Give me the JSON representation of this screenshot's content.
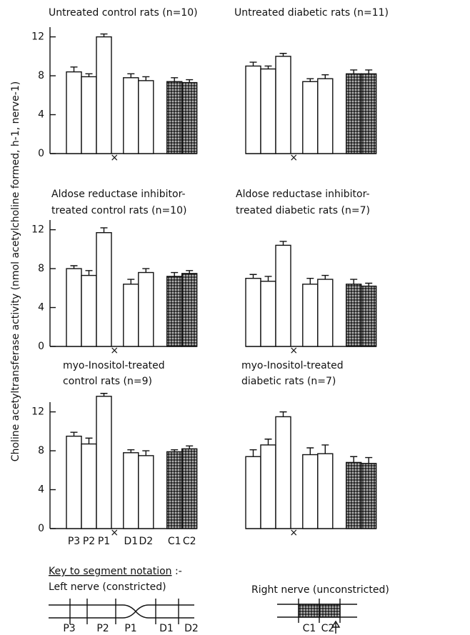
{
  "y_axis_label": "Choline acetyltransferase activity (nmol acetylcholine formed, h-1, nerve-1)",
  "chart_data": [
    {
      "type": "bar",
      "title": [
        "Untreated control rats (n=10)"
      ],
      "categories": [
        null,
        null,
        null,
        null,
        null,
        null,
        null
      ],
      "values": [
        8.4,
        7.9,
        12.0,
        7.8,
        7.5,
        7.4,
        7.3
      ],
      "errors": [
        0.5,
        0.3,
        0.3,
        0.4,
        0.4,
        0.4,
        0.3
      ],
      "colors": [
        "#ffffff",
        "#ffffff",
        "#ffffff",
        "#ffffff",
        "#ffffff",
        "#e4e4e4",
        "#e4e4e4"
      ],
      "ylim": [
        0,
        13
      ],
      "yticks": [
        0,
        4,
        8,
        12
      ],
      "constriction_label": "×"
    },
    {
      "type": "bar",
      "title": [
        "Untreated diabetic rats (n=11)"
      ],
      "categories": [
        null,
        null,
        null,
        null,
        null,
        null,
        null
      ],
      "values": [
        9.0,
        8.7,
        10.0,
        7.4,
        7.7,
        8.2,
        8.2
      ],
      "errors": [
        0.4,
        0.3,
        0.3,
        0.3,
        0.4,
        0.4,
        0.4
      ],
      "colors": [
        "#ffffff",
        "#ffffff",
        "#ffffff",
        "#ffffff",
        "#ffffff",
        "#e4e4e4",
        "#e4e4e4"
      ],
      "ylim": [
        0,
        13
      ],
      "constriction_label": "×"
    },
    {
      "type": "bar",
      "title": [
        "Aldose reductase inhibitor-",
        "treated control rats (n=10)"
      ],
      "categories": [
        null,
        null,
        null,
        null,
        null,
        null,
        null
      ],
      "values": [
        8.0,
        7.3,
        11.7,
        6.4,
        7.6,
        7.2,
        7.5
      ],
      "errors": [
        0.3,
        0.5,
        0.5,
        0.5,
        0.4,
        0.4,
        0.3
      ],
      "colors": [
        "#ffffff",
        "#ffffff",
        "#ffffff",
        "#ffffff",
        "#ffffff",
        "#e4e4e4",
        "#e4e4e4"
      ],
      "ylim": [
        0,
        13
      ],
      "yticks": [
        0,
        4,
        8,
        12
      ],
      "constriction_label": "×"
    },
    {
      "type": "bar",
      "title": [
        "Aldose reductase inhibitor-",
        "treated diabetic rats (n=7)"
      ],
      "categories": [
        null,
        null,
        null,
        null,
        null,
        null,
        null
      ],
      "values": [
        7.0,
        6.7,
        10.4,
        6.4,
        6.9,
        6.4,
        6.2
      ],
      "errors": [
        0.4,
        0.5,
        0.4,
        0.6,
        0.4,
        0.5,
        0.3
      ],
      "colors": [
        "#ffffff",
        "#ffffff",
        "#ffffff",
        "#ffffff",
        "#ffffff",
        "#e4e4e4",
        "#e4e4e4"
      ],
      "ylim": [
        0,
        13
      ],
      "constriction_label": "×"
    },
    {
      "type": "bar",
      "title": [
        "myo-Inositol-treated",
        "control rats (n=9)"
      ],
      "categories": [
        "P3",
        "P2",
        "P1",
        "D1",
        "D2",
        "C1",
        "C2"
      ],
      "values": [
        9.5,
        8.7,
        13.6,
        7.8,
        7.5,
        7.9,
        8.2
      ],
      "errors": [
        0.4,
        0.6,
        0.3,
        0.3,
        0.5,
        0.2,
        0.3
      ],
      "colors": [
        "#ffffff",
        "#ffffff",
        "#ffffff",
        "#ffffff",
        "#ffffff",
        "#e4e4e4",
        "#e4e4e4"
      ],
      "ylim": [
        0,
        13
      ],
      "yticks": [
        0,
        4,
        8,
        12
      ],
      "constriction_label": "×"
    },
    {
      "type": "bar",
      "title": [
        "myo-Inositol-treated",
        "diabetic rats (n=7)"
      ],
      "categories": [
        null,
        null,
        null,
        null,
        null,
        null,
        null
      ],
      "values": [
        7.4,
        8.6,
        11.5,
        7.6,
        7.7,
        6.8,
        6.7
      ],
      "errors": [
        0.7,
        0.6,
        0.5,
        0.7,
        0.9,
        0.6,
        0.6
      ],
      "colors": [
        "#ffffff",
        "#ffffff",
        "#ffffff",
        "#ffffff",
        "#ffffff",
        "#e4e4e4",
        "#e4e4e4"
      ],
      "ylim": [
        0,
        13
      ],
      "constriction_label": "×"
    }
  ],
  "key": {
    "heading": "Key to segment notation",
    "heading_suffix": " :-",
    "left_title": "Left nerve (constricted)",
    "right_title": "Right nerve (unconstricted)",
    "left_labels": [
      "P3",
      "P2",
      "P1",
      "D1",
      "D2"
    ],
    "right_labels": [
      "C1",
      "C2"
    ]
  }
}
